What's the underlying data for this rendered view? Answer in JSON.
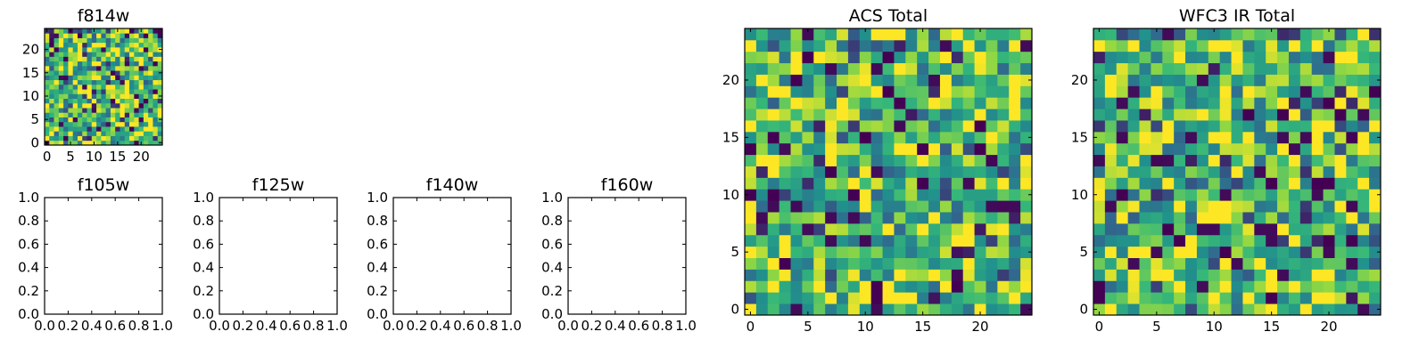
{
  "colormap": "viridis",
  "colormap_stops": [
    "#440154",
    "#31688e",
    "#21918c",
    "#35b779",
    "#90d743",
    "#fde725"
  ],
  "chart_data": [
    {
      "id": "f814w",
      "type": "heatmap",
      "title": "f814w",
      "grid_size": [
        25,
        25
      ],
      "xlim": [
        -0.5,
        24.5
      ],
      "ylim": [
        -0.5,
        24.5
      ],
      "xticks": [
        0,
        5,
        10,
        15,
        20
      ],
      "yticks": [
        0,
        5,
        10,
        15,
        20
      ],
      "values_note": "noise",
      "seed": 814
    },
    {
      "id": "f105w",
      "type": "heatmap",
      "title": "f105w",
      "empty": true,
      "xlim": [
        0,
        1
      ],
      "ylim": [
        0,
        1
      ],
      "xticks": [
        "0.0",
        "0.2",
        "0.4",
        "0.6",
        "0.8",
        "1.0"
      ],
      "yticks": [
        "0.0",
        "0.2",
        "0.4",
        "0.6",
        "0.8",
        "1.0"
      ]
    },
    {
      "id": "f125w",
      "type": "heatmap",
      "title": "f125w",
      "empty": true,
      "xlim": [
        0,
        1
      ],
      "ylim": [
        0,
        1
      ],
      "xticks": [
        "0.0",
        "0.2",
        "0.4",
        "0.6",
        "0.8",
        "1.0"
      ],
      "yticks": [
        "0.0",
        "0.2",
        "0.4",
        "0.6",
        "0.8",
        "1.0"
      ]
    },
    {
      "id": "f140w",
      "type": "heatmap",
      "title": "f140w",
      "empty": true,
      "xlim": [
        0,
        1
      ],
      "ylim": [
        0,
        1
      ],
      "xticks": [
        "0.0",
        "0.2",
        "0.4",
        "0.6",
        "0.8",
        "1.0"
      ],
      "yticks": [
        "0.0",
        "0.2",
        "0.4",
        "0.6",
        "0.8",
        "1.0"
      ]
    },
    {
      "id": "f160w",
      "type": "heatmap",
      "title": "f160w",
      "empty": true,
      "xlim": [
        0,
        1
      ],
      "ylim": [
        0,
        1
      ],
      "xticks": [
        "0.0",
        "0.2",
        "0.4",
        "0.6",
        "0.8",
        "1.0"
      ],
      "yticks": [
        "0.0",
        "0.2",
        "0.4",
        "0.6",
        "0.8",
        "1.0"
      ]
    },
    {
      "id": "acs-total",
      "type": "heatmap",
      "title": "ACS Total",
      "grid_size": [
        25,
        25
      ],
      "xlim": [
        -0.5,
        24.5
      ],
      "ylim": [
        -0.5,
        24.5
      ],
      "xticks": [
        0,
        5,
        10,
        15,
        20
      ],
      "yticks": [
        0,
        5,
        10,
        15,
        20
      ],
      "values_note": "noise",
      "seed": 2024
    },
    {
      "id": "wfc3-ir-total",
      "type": "heatmap",
      "title": "WFC3 IR Total",
      "grid_size": [
        25,
        25
      ],
      "xlim": [
        -0.5,
        24.5
      ],
      "ylim": [
        -0.5,
        24.5
      ],
      "xticks": [
        0,
        5,
        10,
        15,
        20
      ],
      "yticks": [
        0,
        5,
        10,
        15,
        20
      ],
      "values_note": "noise",
      "seed": 3033
    }
  ]
}
